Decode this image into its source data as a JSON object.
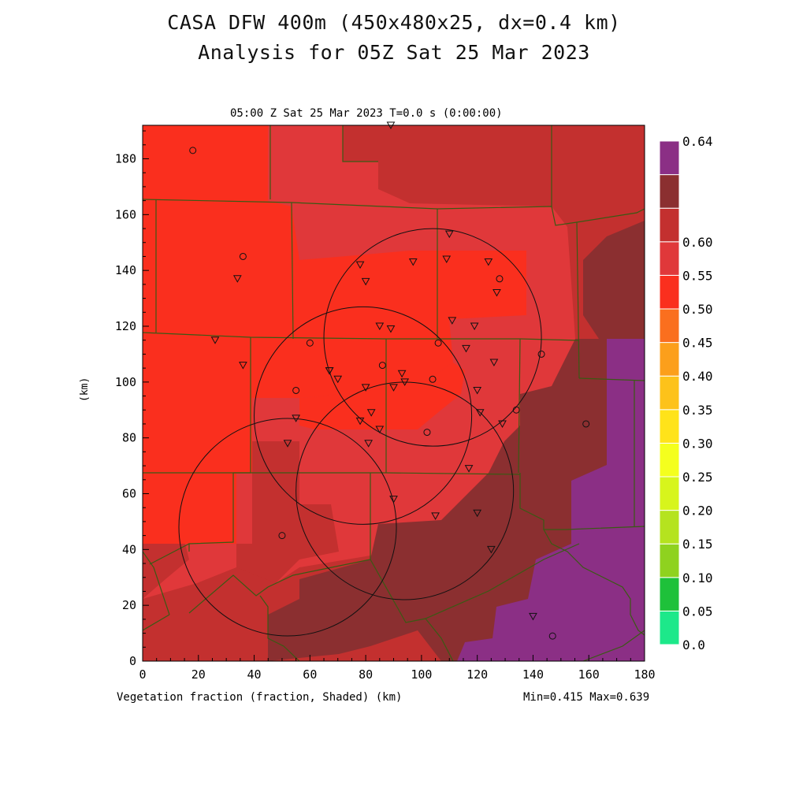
{
  "header": {
    "title_line1": "CASA DFW 400m (450x480x25, dx=0.4 km)",
    "title_line2": "Analysis for 05Z Sat 25 Mar 2023",
    "subtitle": "05:00 Z Sat 25 Mar 2023   T=0.0 s (0:00:00)"
  },
  "footer": {
    "variable_label": "Vegetation fraction (fraction, Shaded)  (km)",
    "minmax": "Min=0.415 Max=0.639"
  },
  "axes": {
    "ylabel": "(km)",
    "x_ticks": [
      "0",
      "20",
      "40",
      "60",
      "80",
      "100",
      "120",
      "140",
      "160",
      "180"
    ],
    "y_ticks": [
      "0",
      "20",
      "40",
      "60",
      "80",
      "100",
      "120",
      "140",
      "160",
      "180"
    ],
    "x_range": [
      0,
      180
    ],
    "y_range": [
      0,
      192
    ]
  },
  "colorbar": {
    "labels": [
      "0.0",
      "0.05",
      "0.10",
      "0.15",
      "0.20",
      "0.25",
      "0.30",
      "0.35",
      "0.40",
      "0.45",
      "0.50",
      "0.55",
      "0.60",
      "0.64"
    ],
    "colors": [
      "#1de88a",
      "#1ec13a",
      "#8fd21f",
      "#b5e31f",
      "#d7f51c",
      "#f4ff1e",
      "#ffe31a",
      "#fdc21a",
      "#fc9f1b",
      "#fa6f1e",
      "#fa2f1e",
      "#e0383a",
      "#c3302f",
      "#8b2f30",
      "#8b2f85"
    ]
  },
  "map_colors": {
    "c040_045": "#fa2f1e",
    "c045_050": "#e0383a",
    "c050_055": "#c3302f",
    "c055_060": "#8b2f30",
    "c060_064": "#8b2f85",
    "county_line": "#3a5a14"
  },
  "radars": [
    {
      "name": "radar-northeast",
      "x": 104,
      "y": 116,
      "r_km": 39
    },
    {
      "name": "radar-center",
      "x": 79,
      "y": 88,
      "r_km": 39
    },
    {
      "name": "radar-east",
      "x": 94,
      "y": 61,
      "r_km": 39
    },
    {
      "name": "radar-southwest",
      "x": 52,
      "y": 48,
      "r_km": 39
    }
  ],
  "stations_circle": [
    [
      18,
      183
    ],
    [
      36,
      145
    ],
    [
      60,
      114
    ],
    [
      55,
      97
    ],
    [
      86,
      106
    ],
    [
      106,
      114
    ],
    [
      104,
      101
    ],
    [
      102,
      82
    ],
    [
      128,
      137
    ],
    [
      143,
      110
    ],
    [
      134,
      90
    ],
    [
      159,
      85
    ],
    [
      50,
      45
    ],
    [
      147,
      9
    ]
  ],
  "stations_triangle": [
    [
      89,
      192
    ],
    [
      110,
      153
    ],
    [
      124,
      143
    ],
    [
      109,
      144
    ],
    [
      97,
      143
    ],
    [
      78,
      142
    ],
    [
      80,
      136
    ],
    [
      34,
      137
    ],
    [
      127,
      132
    ],
    [
      111,
      122
    ],
    [
      119,
      120
    ],
    [
      85,
      120
    ],
    [
      89,
      119
    ],
    [
      26,
      115
    ],
    [
      116,
      112
    ],
    [
      36,
      106
    ],
    [
      126,
      107
    ],
    [
      67,
      104
    ],
    [
      67,
      104
    ],
    [
      70,
      101
    ],
    [
      93,
      103
    ],
    [
      94,
      100
    ],
    [
      90,
      98
    ],
    [
      80,
      98
    ],
    [
      120,
      97
    ],
    [
      82,
      89
    ],
    [
      121,
      89
    ],
    [
      129,
      85
    ],
    [
      78,
      86
    ],
    [
      55,
      87
    ],
    [
      85,
      83
    ],
    [
      52,
      78
    ],
    [
      81,
      78
    ],
    [
      117,
      69
    ],
    [
      90,
      58
    ],
    [
      120,
      53
    ],
    [
      105,
      52
    ],
    [
      125,
      40
    ],
    [
      140,
      16
    ]
  ]
}
